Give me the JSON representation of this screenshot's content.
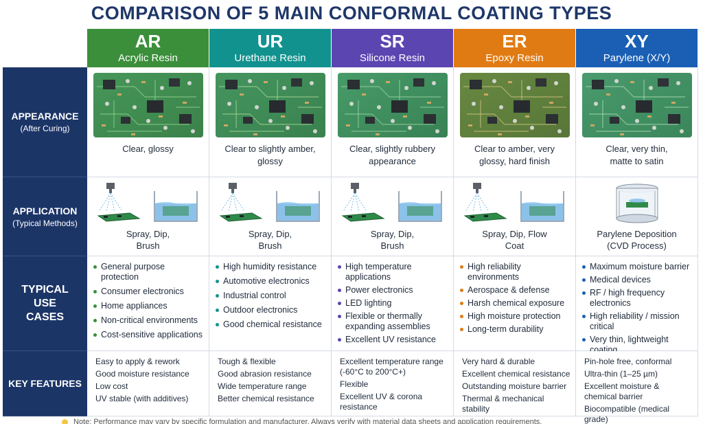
{
  "title": "COMPARISON OF 5 MAIN CONFORMAL COATING TYPES",
  "row_headers": {
    "appearance": {
      "main": "APPEARANCE",
      "sub": "(After Curing)"
    },
    "application": {
      "main": "APPLICATION",
      "sub": "(Typical Methods)"
    },
    "use_cases": {
      "main": "TYPICAL USE CASES"
    },
    "features": {
      "main": "KEY FEATURES"
    }
  },
  "columns": [
    {
      "abbr": "AR",
      "name": "Acrylic Resin",
      "color": "#3b8f3b",
      "dot_color": "#3b8f3b",
      "appearance": "Clear, glossy",
      "application": "Spray, Dip, Brush",
      "use_cases": [
        "General purpose protection",
        "Consumer electronics",
        "Home appliances",
        "Non-critical environments",
        "Cost-sensitive applications"
      ],
      "features": [
        "Easy to apply & rework",
        "Good moisture resistance",
        "Low cost",
        "UV stable (with additives)"
      ]
    },
    {
      "abbr": "UR",
      "name": "Urethane Resin",
      "color": "#12928f",
      "dot_color": "#12928f",
      "appearance": "Clear to slightly amber, glossy",
      "application": "Spray, Dip, Brush",
      "use_cases": [
        "High humidity resistance",
        "Automotive electronics",
        "Industrial control",
        "Outdoor electronics",
        "Good chemical resistance"
      ],
      "features": [
        "Tough & flexible",
        "Good abrasion resistance",
        "Wide temperature range",
        "Better chemical resistance"
      ]
    },
    {
      "abbr": "SR",
      "name": "Silicone Resin",
      "color": "#5b45b0",
      "dot_color": "#5b45b0",
      "appearance": "Clear, slightly rubbery appearance",
      "application": "Spray, Dip, Brush",
      "use_cases": [
        "High temperature applications",
        "Power electronics",
        "LED lighting",
        "Flexible or thermally expanding assemblies",
        "Excellent UV resistance"
      ],
      "features": [
        "Excellent temperature range (-60°C to 200°C+)",
        "Flexible",
        "Excellent UV & corona resistance"
      ]
    },
    {
      "abbr": "ER",
      "name": "Epoxy Resin",
      "color": "#e07b14",
      "dot_color": "#e07b14",
      "appearance": "Clear to amber, very glossy, hard finish",
      "application": "Spray, Dip, Flow Coat",
      "use_cases": [
        "High reliability environments",
        "Aerospace & defense",
        "Harsh chemical exposure",
        "High moisture protection",
        "Long-term durability"
      ],
      "features": [
        "Very hard & durable",
        "Excellent chemical resistance",
        "Outstanding moisture barrier",
        "Thermal & mechanical stability"
      ]
    },
    {
      "abbr": "XY",
      "name": "Parylene (X/Y)",
      "color": "#1a5fb4",
      "dot_color": "#1a5fb4",
      "appearance": "Clear, very thin, matte to satin",
      "application": "Parylene Deposition (CVD Process)",
      "use_cases": [
        "Maximum moisture barrier",
        "Medical devices",
        "RF / high frequency electronics",
        "High reliability / mission critical",
        "Very thin, lightweight coating"
      ],
      "features": [
        "Pin-hole free, conformal",
        "Ultra-thin (1–25 µm)",
        "Excellent moisture & chemical barrier",
        "Biocompatible (medical grade)"
      ]
    }
  ],
  "note": "Note: Performance may vary by specific formulation and manufacturer. Always verify with material data sheets and application requirements."
}
